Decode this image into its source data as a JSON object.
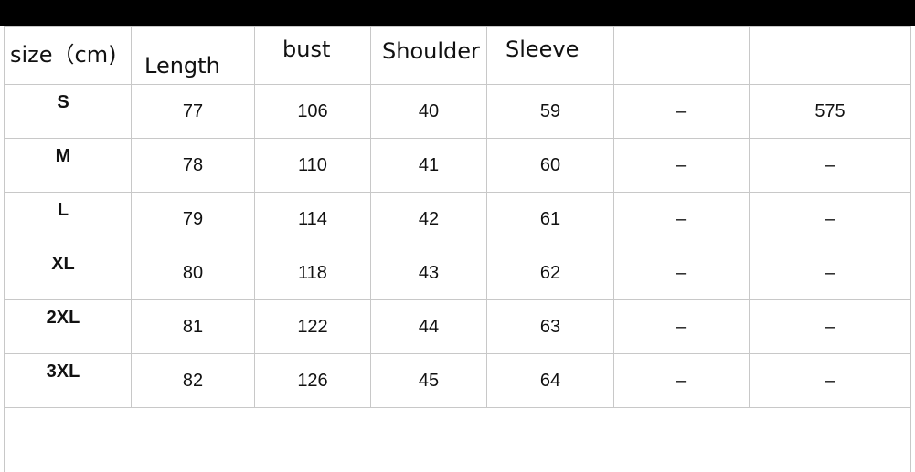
{
  "headers": {
    "size": "size（cm)",
    "length": "Length",
    "bust": "bust",
    "shoulder": "Shoulder",
    "sleeve": "Sleeve",
    "extra1": "",
    "extra2": ""
  },
  "rows": [
    {
      "size": "S",
      "length": "77",
      "bust": "106",
      "shoulder": "40",
      "sleeve": "59",
      "extra1": "–",
      "extra2": "575"
    },
    {
      "size": "M",
      "length": "78",
      "bust": "110",
      "shoulder": "41",
      "sleeve": "60",
      "extra1": "–",
      "extra2": "–"
    },
    {
      "size": "L",
      "length": "79",
      "bust": "114",
      "shoulder": "42",
      "sleeve": "61",
      "extra1": "–",
      "extra2": "–"
    },
    {
      "size": "XL",
      "length": "80",
      "bust": "118",
      "shoulder": "43",
      "sleeve": "62",
      "extra1": "–",
      "extra2": "–"
    },
    {
      "size": "2XL",
      "length": "81",
      "bust": "122",
      "shoulder": "44",
      "sleeve": "63",
      "extra1": "–",
      "extra2": "–"
    },
    {
      "size": "3XL",
      "length": "82",
      "bust": "126",
      "shoulder": "45",
      "sleeve": "64",
      "extra1": "–",
      "extra2": "–"
    }
  ],
  "colors": {
    "top_bar": "#000000",
    "grid_line": "#c8c8c8",
    "text": "#111111"
  }
}
